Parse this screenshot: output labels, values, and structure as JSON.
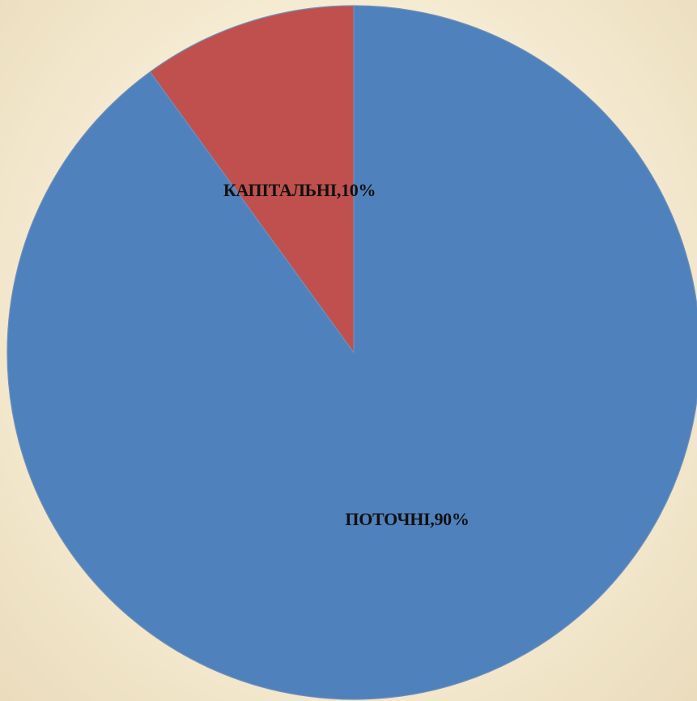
{
  "chart_data": {
    "type": "pie",
    "title": "",
    "start_angle_deg": 0,
    "direction": "clockwise",
    "legend": "none",
    "slices": [
      {
        "label": "ПОТОЧНІ,90%",
        "category": "ПОТОЧНІ",
        "value": 90,
        "color": "#4f81bd"
      },
      {
        "label": "КАПІТАЛЬНІ,10%",
        "category": "КАПІТАЛЬНІ",
        "value": 10,
        "color": "#c0504d"
      }
    ]
  },
  "colors": {
    "background": "#f6ecd4",
    "slice_border": "#6f8fb8",
    "label_text": "#111111"
  }
}
